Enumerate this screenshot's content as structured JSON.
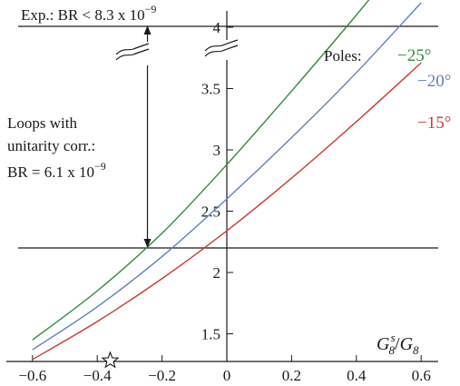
{
  "chart_data": {
    "type": "line",
    "xlabel_main": "G",
    "xlabel_sup": "s",
    "xlabel_sub": "8",
    "xlabel_slash": "/",
    "xlabel_main2": "G",
    "xlabel_sub2": "8",
    "xlim": [
      -0.6,
      0.6
    ],
    "ylim": [
      1.22,
      4.6
    ],
    "x_ticks": [
      -0.6,
      -0.4,
      -0.2,
      0,
      0.2,
      0.4,
      0.6
    ],
    "x_tick_labels": [
      "−0.6",
      "−0.4",
      "−0.2",
      "0",
      "0.2",
      "0.4",
      "0.6"
    ],
    "y_ticks": [
      1.5,
      2,
      2.5,
      3,
      3.5,
      4
    ],
    "y_tick_labels": [
      "1.5",
      "2",
      "2.5",
      "3",
      "3.5",
      "4"
    ],
    "series": [
      {
        "name": "−25°",
        "color": "#2e8b3e",
        "x": [
          -0.6,
          -0.4,
          -0.2,
          0.0,
          0.2,
          0.4,
          0.52
        ],
        "y": [
          1.45,
          1.85,
          2.32,
          2.88,
          3.48,
          4.1,
          4.49
        ]
      },
      {
        "name": "−20°",
        "color": "#5f7fbf",
        "x": [
          -0.6,
          -0.4,
          -0.2,
          0.0,
          0.2,
          0.4,
          0.6
        ],
        "y": [
          1.37,
          1.72,
          2.13,
          2.6,
          3.1,
          3.63,
          4.2
        ]
      },
      {
        "name": "−15°",
        "color": "#cc3a2e",
        "x": [
          -0.6,
          -0.4,
          -0.2,
          0.0,
          0.2,
          0.4,
          0.6
        ],
        "y": [
          1.29,
          1.6,
          1.95,
          2.34,
          2.77,
          3.23,
          3.71
        ]
      }
    ],
    "legend_title": "Poles:",
    "annotations": {
      "exp_label": "Exp.: BR < 8.3 x 10",
      "exp_exponent": "−9",
      "loops_line1": "Loops with",
      "loops_line2": "unitarity corr.:",
      "loops_line3": "BR = 6.1 x 10",
      "loops_exponent": "−9",
      "horizontal_line_y": 2.2,
      "arrow_x": -0.245,
      "star_x": -0.36
    }
  }
}
